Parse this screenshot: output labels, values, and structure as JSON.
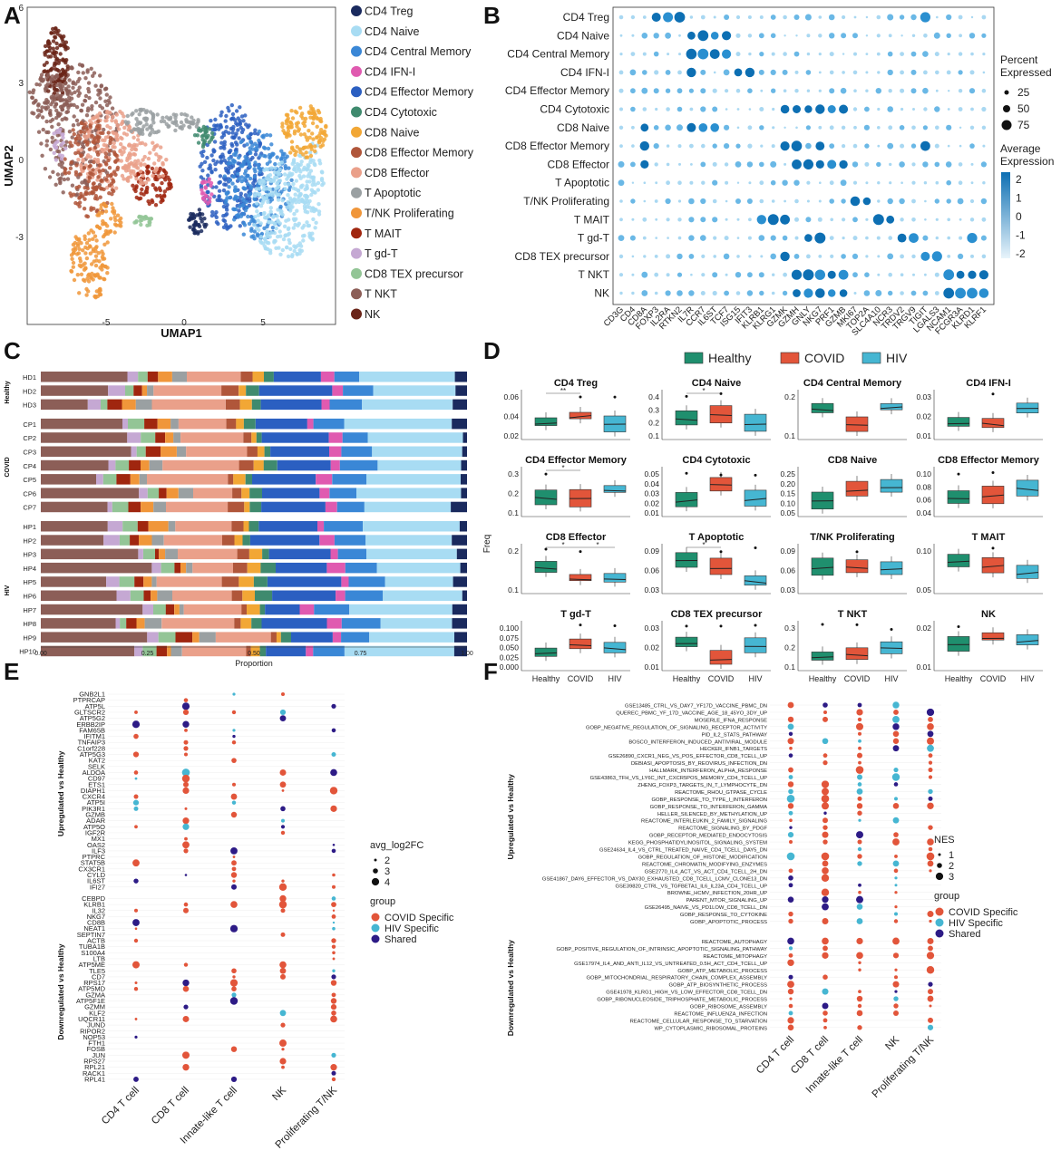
{
  "panels": {
    "A": {
      "letter": "A",
      "xlabel": "UMAP1",
      "ylabel": "UMAP2",
      "xticks": [
        "-5",
        "0",
        "5"
      ],
      "yticks": [
        "6",
        "3",
        "0",
        "-3"
      ],
      "legend": [
        {
          "name": "CD4 Treg",
          "color": "#1a2a5e"
        },
        {
          "name": "CD4 Naive",
          "color": "#a8dcf3"
        },
        {
          "name": "CD4 Central Memory",
          "color": "#3a87d6"
        },
        {
          "name": "CD4 IFN-I",
          "color": "#e05ab0"
        },
        {
          "name": "CD4 Effector Memory",
          "color": "#2b5fc1"
        },
        {
          "name": "CD4 Cytotoxic",
          "color": "#3f8a6e"
        },
        {
          "name": "CD8 Naive",
          "color": "#f2a735"
        },
        {
          "name": "CD8 Effector Memory",
          "color": "#b0563a"
        },
        {
          "name": "CD8 Effector",
          "color": "#eaa08a"
        },
        {
          "name": "T Apoptotic",
          "color": "#9aa0a2"
        },
        {
          "name": "T/NK Proliferating",
          "color": "#f0963a"
        },
        {
          "name": "T MAIT",
          "color": "#a0260f"
        },
        {
          "name": "T gd-T",
          "color": "#c5a8d3"
        },
        {
          "name": "CD8 TEX precursor",
          "color": "#93c596"
        },
        {
          "name": "T NKT",
          "color": "#8c5e57"
        },
        {
          "name": "NK",
          "color": "#6a2418"
        }
      ]
    },
    "B": {
      "letter": "B",
      "rows": [
        "CD4 Treg",
        "CD4 Naive",
        "CD4 Central Memory",
        "CD4 IFN-I",
        "CD4 Effector Memory",
        "CD4 Cytotoxic",
        "CD8 Naive",
        "CD8 Effector Memory",
        "CD8 Effector",
        "T Apoptotic",
        "T/NK Proliferating",
        "T MAIT",
        "T gd-T",
        "CD8 TEX precursor",
        "T NKT",
        "NK"
      ],
      "genes": [
        "CD3G",
        "CD4",
        "CD8A",
        "FOXP3",
        "IL2RA",
        "RTKN2",
        "IL7R",
        "CCR7",
        "IL6ST",
        "TCF7",
        "ISG15",
        "IFIT3",
        "KLRB1",
        "KLRG1",
        "GZMK",
        "GZMH",
        "GNLY",
        "NKG7",
        "PRF1",
        "GZMB",
        "MKI67",
        "TOP2A",
        "SLC4A10",
        "NCR3",
        "TRDV2",
        "TRGV9",
        "TIGIT",
        "LGALS3",
        "NCAM1",
        "FCGR3A",
        "KLRD1",
        "KLRF1"
      ],
      "legend_size_title": "Percent Expressed",
      "legend_size_values": [
        "25",
        "50",
        "75"
      ],
      "legend_color_title": "Average Expression",
      "legend_color_values": [
        "2",
        "1",
        "0",
        "-1",
        "-2"
      ]
    },
    "C": {
      "letter": "C",
      "xlabel": "Proportion",
      "xticks": [
        "0.00",
        "0.25",
        "0.50",
        "0.75",
        "1.00"
      ],
      "groups": [
        {
          "name": "Healthy",
          "samples": [
            "HD1",
            "HD2",
            "HD3"
          ]
        },
        {
          "name": "COVID",
          "samples": [
            "CP1",
            "CP2",
            "CP3",
            "CP4",
            "CP5",
            "CP6",
            "CP7"
          ]
        },
        {
          "name": "HIV",
          "samples": [
            "HP1",
            "HP2",
            "HP3",
            "HP4",
            "HP5",
            "HP6",
            "HP7",
            "HP8",
            "HP9",
            "HP10"
          ]
        }
      ]
    },
    "D": {
      "letter": "D",
      "ylabel": "Freq",
      "legend": [
        {
          "name": "Healthy",
          "color": "#1f8f6e"
        },
        {
          "name": "COVID",
          "color": "#e2553a"
        },
        {
          "name": "HIV",
          "color": "#46b6d2"
        }
      ],
      "xcats": [
        "Healthy",
        "COVID",
        "HIV"
      ],
      "facets": [
        {
          "title": "CD4 Treg",
          "yticks": [
            "0.06",
            "0.04",
            "0.02"
          ],
          "sig": [
            "**"
          ]
        },
        {
          "title": "CD4 Naive",
          "yticks": [
            "0.4",
            "0.3",
            "0.2",
            "0.1"
          ],
          "sig": [
            "*"
          ]
        },
        {
          "title": "CD4 Central Memory",
          "yticks": [
            "0.2",
            "0.1"
          ],
          "sig": []
        },
        {
          "title": "CD4 IFN-I",
          "yticks": [
            "0.03",
            "0.02",
            "0.01"
          ],
          "sig": []
        },
        {
          "title": "CD4 Effector Memory",
          "yticks": [
            "0.3",
            "0.2",
            "0.1"
          ],
          "sig": [
            "*"
          ]
        },
        {
          "title": "CD4 Cytotoxic",
          "yticks": [
            "0.05",
            "0.04",
            "0.03",
            "0.02",
            "0.01"
          ],
          "sig": []
        },
        {
          "title": "CD8 Naive",
          "yticks": [
            "0.25",
            "0.20",
            "0.15",
            "0.10",
            "0.05"
          ],
          "sig": []
        },
        {
          "title": "CD8 Effector Memory",
          "yticks": [
            "0.10",
            "0.08",
            "0.06",
            "0.04"
          ],
          "sig": []
        },
        {
          "title": "CD8 Effector",
          "yticks": [
            "0.2",
            "0.1"
          ],
          "sig": [
            "*",
            "*"
          ]
        },
        {
          "title": "T Apoptotic",
          "yticks": [
            "0.09",
            "0.06",
            "0.03"
          ],
          "sig": [
            "*"
          ]
        },
        {
          "title": "T/NK Proliferating",
          "yticks": [
            "0.09",
            "0.06",
            "0.03"
          ],
          "sig": []
        },
        {
          "title": "T MAIT",
          "yticks": [
            "0.10",
            "0.05"
          ],
          "sig": []
        },
        {
          "title": "T gd-T",
          "yticks": [
            "0.100",
            "0.075",
            "0.050",
            "0.025",
            "0.000"
          ],
          "sig": []
        },
        {
          "title": "CD8 TEX precursor",
          "yticks": [
            "0.03",
            "0.02",
            "0.01"
          ],
          "sig": []
        },
        {
          "title": "T NKT",
          "yticks": [
            "0.3",
            "0.2",
            "0.1"
          ],
          "sig": []
        },
        {
          "title": "NK",
          "yticks": [
            "0.02",
            "0.01"
          ],
          "sig": []
        }
      ]
    },
    "E": {
      "letter": "E",
      "up_label": "Upregulated vs Healthy",
      "down_label": "Downregulated vs Healthy",
      "columns": [
        "CD4 T cell",
        "CD8 T cell",
        "Innate-like T cell",
        "NK",
        "Proliferating T/NK"
      ],
      "up_genes": [
        "GNB2L1",
        "PTPRCAP",
        "ATP5L",
        "GLTSCR2",
        "ATP5G2",
        "ERBB2IP",
        "FAM65B",
        "IFITM1",
        "TNFAIP3",
        "C1orf228",
        "ATP5G3",
        "KAT2",
        "SELK",
        "ALDOA",
        "CD97",
        "ETS1",
        "DIAPH1",
        "CXCR4",
        "ATP5I",
        "PIK3R1",
        "GZMB",
        "ADAR",
        "ATP5O",
        "IGF2R",
        "MX1",
        "OAS2",
        "ILF3",
        "PTPRC",
        "STAT5B",
        "CX3CR1",
        "CYLD",
        "IL6ST",
        "IFI27"
      ],
      "down_genes": [
        "CEBPD",
        "KLRB1",
        "IL32",
        "NKG7",
        "CD8B",
        "NEAT1",
        "SEPTIN7",
        "ACTB",
        "TUBA1B",
        "S100A4",
        "LTB",
        "ATP5ME",
        "TLE5",
        "CD7",
        "RPS17",
        "ATP5MD",
        "GZMA",
        "ATP5F1E",
        "GZMM",
        "KLF2",
        "UQCR11",
        "JUND",
        "RIPOR2",
        "NOP53",
        "FTH1",
        "FOSB",
        "JUN",
        "RPS27",
        "RPL21",
        "RACK1",
        "RPL41"
      ],
      "legend_size_title": "avg_log2FC",
      "legend_size_values": [
        "2",
        "3",
        "4"
      ],
      "legend_group_title": "group",
      "legend_groups": [
        {
          "name": "COVID Specific",
          "color": "#e2553a"
        },
        {
          "name": "HIV Specific",
          "color": "#46b6d2"
        },
        {
          "name": "Shared",
          "color": "#2d1b86"
        }
      ]
    },
    "F": {
      "letter": "F",
      "up_label": "Upregulated vs Healthy",
      "down_label": "Downregulated vs Healthy",
      "columns": [
        "CD4 T cell",
        "CD8 T cell",
        "Innate-like T cell",
        "NK",
        "Proliferating T/NK"
      ],
      "up_sets": [
        "GSE13485_CTRL_VS_DAY7_YF17D_VACCINE_PBMC_DN",
        "QUEREC_PBMC_YF_17D_VACCINE_AGE_18_45YO_3DY_UP",
        "MOSERLE_IFNA_RESPONSE",
        "GOBP_NEGATIVE_REGULATION_OF_SIGNALING_RECEPTOR_ACTIVITY",
        "PID_IL2_STATS_PATHWAY",
        "BOSCO_INTERFERON_INDUCED_ANTIVIRAL_MODULE",
        "HECKER_IFNB1_TARGETS",
        "GSE26890_CXCR1_NEG_VS_POS_EFFECTOR_CD8_TCELL_UP",
        "DEBIASI_APOPTOSIS_BY_REOVIRUS_INFECTION_DN",
        "HALLMARK_INTERFERON_ALPHA_RESPONSE",
        "GSE43863_TFH_VS_LY6C_INT_CXCR5POS_MEMORY_CD4_TCELL_UP",
        "ZHENG_FOXP3_TARGETS_IN_T_LYMPHOCYTE_DN",
        "REACTOME_RHOU_GTPASE_CYCLE",
        "GOBP_RESPONSE_TO_TYPE_I_INTERFERON",
        "GOBP_RESPONSE_TO_INTERFERON_GAMMA",
        "HELLER_SILENCED_BY_METHYLATION_UP",
        "REACTOME_INTERLEUKIN_2_FAMILY_SIGNALING",
        "REACTOME_SIGNALING_BY_PDGF",
        "GOBP_RECEPTOR_MEDIATED_ENDOCYTOSIS",
        "KEGG_PHOSPHATIDYLINOSITOL_SIGNALING_SYSTEM",
        "GSE24634_IL4_VS_CTRL_TREATED_NAIVE_CD4_TCELL_DAY5_DN",
        "GOBP_REGULATION_OF_HISTONE_MODIFICATION",
        "REACTOME_CHROMATIN_MODIFYING_ENZYMES",
        "GSE2770_IL4_ACT_VS_ACT_CD4_TCELL_2H_DN",
        "GSE41867_DAY6_EFFECTOR_VS_DAY30_EXHAUSTED_CD8_TCELL_LCMV_CLONE13_DN",
        "GSE39820_CTRL_VS_TGFBETA1_IL6_IL23A_CD4_TCELL_UP",
        "BROWNE_HCMV_INFECTION_20HR_UP",
        "PARENT_MTOR_SIGNALING_UP",
        "GSE26495_NAIVE_VS_PD1LOW_CD8_TCELL_DN",
        "GOBP_RESPONSE_TO_CYTOKINE",
        "GOBP_APOPTOTIC_PROCESS"
      ],
      "down_sets": [
        "REACTOME_AUTOPHAGY",
        "GOBP_POSITIVE_REGULATION_OF_INTRINSIC_APOPTOTIC_SIGNALING_PATHWAY",
        "REACTOME_MITOPHAGY",
        "GSE17974_IL4_AND_ANTI_IL12_VS_UNTREATED_0.5H_ACT_CD4_TCELL_UP",
        "GOBP_ATP_METABOLIC_PROCESS",
        "GOBP_MITOCHONDRIAL_RESPIRATORY_CHAIN_COMPLEX_ASSEMBLY",
        "GOBP_ATP_BIOSYNTHETIC_PROCESS",
        "GSE41978_KLRG1_HIGH_VS_LOW_EFFECTOR_CD8_TCELL_DN",
        "GOBP_RIBONUCLEOSIDE_TRIPHOSPHATE_METABOLIC_PROCESS",
        "GOBP_RIBOSOME_ASSEMBLY",
        "REACTOME_INFLUENZA_INFECTION",
        "REACTOME_CELLULAR_RESPONSE_TO_STARVATION",
        "WP_CYTOPLASMIC_RIBOSOMAL_PROTEINS"
      ],
      "legend_size_title": "NES",
      "legend_size_values": [
        "1",
        "2",
        "3"
      ],
      "legend_group_title": "group",
      "legend_groups": [
        {
          "name": "COVID Specific",
          "color": "#e2553a"
        },
        {
          "name": "HIV Specific",
          "color": "#46b6d2"
        },
        {
          "name": "Shared",
          "color": "#2d1b86"
        }
      ]
    }
  }
}
